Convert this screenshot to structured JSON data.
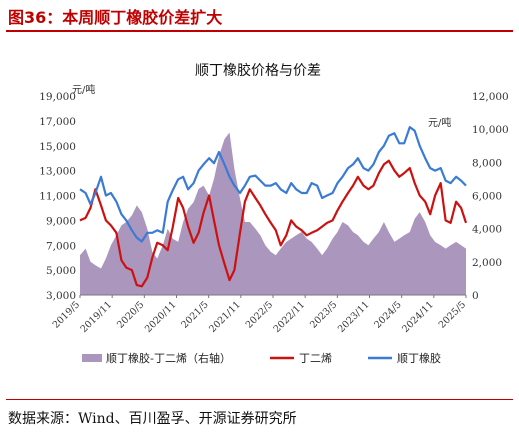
{
  "figure": {
    "title": "图36：本周顺丁橡胶价差扩大",
    "source": "数据来源：Wind、百川盈孚、开源证券研究所"
  },
  "colors": {
    "accent": "#c00000",
    "spread_fill": "#ab96bd",
    "butadiene": "#cc1111",
    "br_rubber": "#3a7bd5"
  },
  "chart_data": {
    "type": "line",
    "title": "顺丁橡胶价格与价差",
    "left_unit": "元/吨",
    "right_unit": "元/吨",
    "left_axis": {
      "min": 3000,
      "max": 19000,
      "ticks": [
        "19,000",
        "17,000",
        "15,000",
        "13,000",
        "11,000",
        "9,000",
        "7,000",
        "5,000",
        "3,000"
      ]
    },
    "right_axis": {
      "min": 0,
      "max": 12000,
      "ticks": [
        "12,000",
        "10,000",
        "8,000",
        "6,000",
        "4,000",
        "2,000",
        "0"
      ]
    },
    "x_ticks": [
      "2019/5",
      "2019/11",
      "2020/5",
      "2020/11",
      "2021/5",
      "2021/11",
      "2022/5",
      "2022/11",
      "2023/5",
      "2023/11",
      "2024/5",
      "2024/11",
      "2025/5"
    ],
    "x_range": [
      2019.33,
      2025.58
    ],
    "legend": [
      "顺丁橡胶-丁二烯（右轴）",
      "丁二烯",
      "顺丁橡胶"
    ],
    "series": [
      {
        "name": "顺丁橡胶-丁二烯（右轴）",
        "axis": "right",
        "kind": "area",
        "x": [
          2019.33,
          2019.42,
          2019.5,
          2019.58,
          2019.67,
          2019.75,
          2019.83,
          2019.92,
          2020.0,
          2020.08,
          2020.17,
          2020.25,
          2020.33,
          2020.42,
          2020.5,
          2020.58,
          2020.67,
          2020.75,
          2020.83,
          2020.92,
          2021.0,
          2021.08,
          2021.17,
          2021.25,
          2021.33,
          2021.42,
          2021.5,
          2021.58,
          2021.67,
          2021.75,
          2021.83,
          2021.92,
          2022.0,
          2022.08,
          2022.17,
          2022.25,
          2022.33,
          2022.42,
          2022.5,
          2022.58,
          2022.67,
          2022.75,
          2022.83,
          2022.92,
          2023.0,
          2023.08,
          2023.17,
          2023.25,
          2023.33,
          2023.42,
          2023.5,
          2023.58,
          2023.67,
          2023.75,
          2023.83,
          2023.92,
          2024.0,
          2024.08,
          2024.17,
          2024.25,
          2024.33,
          2024.42,
          2024.5,
          2024.58,
          2024.67,
          2024.75,
          2024.83,
          2024.92,
          2025.0,
          2025.08,
          2025.17,
          2025.25,
          2025.33,
          2025.42,
          2025.5,
          2025.58
        ],
        "values": [
          2400,
          2800,
          2000,
          1800,
          1600,
          2200,
          3000,
          3600,
          4200,
          4400,
          4800,
          5400,
          5000,
          4000,
          2600,
          2200,
          3000,
          4000,
          3400,
          3200,
          4400,
          5200,
          5600,
          6400,
          6600,
          6000,
          7000,
          8400,
          9400,
          9800,
          7600,
          5800,
          4400,
          4400,
          4000,
          3600,
          3000,
          2600,
          2400,
          2800,
          3200,
          3400,
          3600,
          3800,
          3400,
          3200,
          2800,
          2400,
          2800,
          3400,
          3800,
          4400,
          4200,
          3800,
          3600,
          3200,
          3000,
          3400,
          3800,
          4400,
          3800,
          3200,
          3400,
          3600,
          3800,
          4600,
          5000,
          4400,
          3600,
          3200,
          3000,
          2800,
          3000,
          3200,
          3000,
          2800
        ]
      },
      {
        "name": "丁二烯",
        "axis": "left",
        "kind": "line",
        "x": [
          2019.33,
          2019.42,
          2019.5,
          2019.58,
          2019.67,
          2019.75,
          2019.83,
          2019.92,
          2020.0,
          2020.08,
          2020.17,
          2020.25,
          2020.33,
          2020.42,
          2020.5,
          2020.58,
          2020.67,
          2020.75,
          2020.83,
          2020.92,
          2021.0,
          2021.08,
          2021.17,
          2021.25,
          2021.33,
          2021.42,
          2021.5,
          2021.58,
          2021.67,
          2021.75,
          2021.83,
          2021.92,
          2022.0,
          2022.08,
          2022.17,
          2022.25,
          2022.33,
          2022.42,
          2022.5,
          2022.58,
          2022.67,
          2022.75,
          2022.83,
          2022.92,
          2023.0,
          2023.08,
          2023.17,
          2023.25,
          2023.33,
          2023.42,
          2023.5,
          2023.58,
          2023.67,
          2023.75,
          2023.83,
          2023.92,
          2024.0,
          2024.08,
          2024.17,
          2024.25,
          2024.33,
          2024.42,
          2024.5,
          2024.58,
          2024.67,
          2024.75,
          2024.83,
          2024.92,
          2025.0,
          2025.08,
          2025.17,
          2025.25,
          2025.33,
          2025.42,
          2025.5,
          2025.58
        ],
        "values": [
          9000,
          9200,
          10000,
          11500,
          10200,
          9000,
          8600,
          8000,
          5800,
          5200,
          5000,
          3800,
          3700,
          4400,
          6000,
          7200,
          7000,
          6600,
          8400,
          10800,
          10000,
          8500,
          7200,
          8000,
          9600,
          11000,
          9000,
          7000,
          5500,
          4200,
          5000,
          8000,
          10500,
          11500,
          10800,
          10200,
          9500,
          8800,
          8200,
          7000,
          7800,
          9000,
          8500,
          8200,
          7800,
          8000,
          8200,
          8500,
          8800,
          9000,
          9800,
          10500,
          11200,
          11800,
          12500,
          11800,
          11500,
          11800,
          12800,
          13500,
          13800,
          13000,
          12500,
          12800,
          13200,
          12000,
          11000,
          10500,
          9500,
          11000,
          12000,
          9000,
          8800,
          10500,
          10000,
          8800
        ]
      },
      {
        "name": "顺丁橡胶",
        "axis": "left",
        "kind": "line",
        "x": [
          2019.33,
          2019.42,
          2019.5,
          2019.58,
          2019.67,
          2019.75,
          2019.83,
          2019.92,
          2020.0,
          2020.08,
          2020.17,
          2020.25,
          2020.33,
          2020.42,
          2020.5,
          2020.58,
          2020.67,
          2020.75,
          2020.83,
          2020.92,
          2021.0,
          2021.08,
          2021.17,
          2021.25,
          2021.33,
          2021.42,
          2021.5,
          2021.58,
          2021.67,
          2021.75,
          2021.83,
          2021.92,
          2022.0,
          2022.08,
          2022.17,
          2022.25,
          2022.33,
          2022.42,
          2022.5,
          2022.58,
          2022.67,
          2022.75,
          2022.83,
          2022.92,
          2023.0,
          2023.08,
          2023.17,
          2023.25,
          2023.33,
          2023.42,
          2023.5,
          2023.58,
          2023.67,
          2023.75,
          2023.83,
          2023.92,
          2024.0,
          2024.08,
          2024.17,
          2024.25,
          2024.33,
          2024.42,
          2024.5,
          2024.58,
          2024.67,
          2024.75,
          2024.83,
          2024.92,
          2025.0,
          2025.08,
          2025.17,
          2025.25,
          2025.33,
          2025.42,
          2025.5,
          2025.58
        ],
        "values": [
          11500,
          11200,
          10300,
          11200,
          12500,
          11000,
          11200,
          10500,
          9500,
          9000,
          8200,
          7600,
          7300,
          8000,
          8000,
          8200,
          8000,
          10500,
          11400,
          12300,
          12500,
          11500,
          12000,
          13000,
          13500,
          14000,
          13600,
          14500,
          13500,
          12500,
          11800,
          11200,
          11800,
          12500,
          12600,
          12200,
          11800,
          11800,
          12000,
          11500,
          11200,
          12000,
          11500,
          11200,
          11200,
          12000,
          11800,
          10800,
          11000,
          11200,
          12000,
          12500,
          13200,
          13500,
          14000,
          13200,
          13000,
          13500,
          14500,
          15000,
          15800,
          16000,
          15200,
          15200,
          16500,
          16200,
          15000,
          14000,
          13200,
          13000,
          13200,
          12200,
          12000,
          12500,
          12200,
          11800
        ]
      }
    ]
  }
}
